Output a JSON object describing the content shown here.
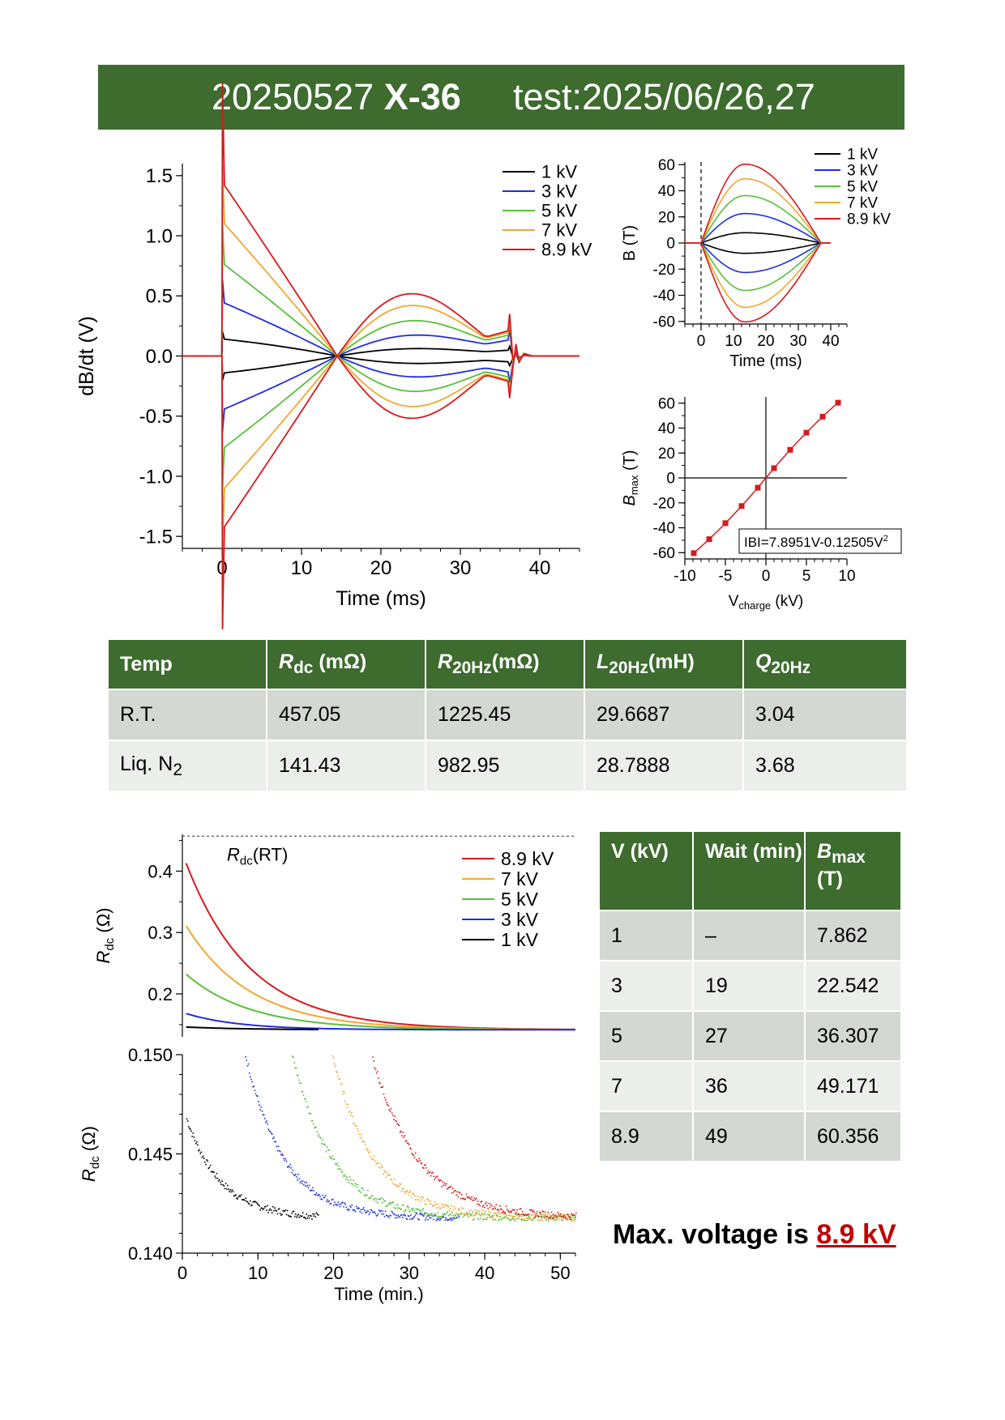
{
  "title": {
    "date": "20250527",
    "coil": "X-36",
    "test": "test:2025/06/26,27"
  },
  "colors": {
    "banner": "#3e6b2e",
    "kv1": "#000000",
    "kv3": "#1f2ee0",
    "kv5": "#58c03a",
    "kv7": "#f0a830",
    "kv89": "#d8191c"
  },
  "chart_data": [
    {
      "type": "line",
      "ylabel": "dB/dt (V)",
      "xlabel": "Time (ms)",
      "xlim": [
        -5,
        45
      ],
      "ylim": [
        -1.6,
        1.6
      ],
      "xticks": [
        "0",
        "10",
        "20",
        "30",
        "40"
      ],
      "yticks": [
        "1.5",
        "1.0",
        "0.5",
        "0.0",
        "-0.5",
        "-1.0",
        "-1.5"
      ],
      "legend": [
        "1 kV",
        "3 kV",
        "5 kV",
        "7 kV",
        "8.9 kV"
      ],
      "legend_position": "top-right",
      "series": [
        {
          "name": "1 kV",
          "peak": 0.14,
          "mid": -0.06,
          "end": -0.08
        },
        {
          "name": "3 kV",
          "peak": 0.44,
          "mid": -0.17,
          "end": -0.22
        },
        {
          "name": "5 kV",
          "peak": 0.76,
          "mid": -0.3,
          "end": -0.29
        },
        {
          "name": "7 kV",
          "peak": 1.1,
          "mid": -0.44,
          "end": -0.33
        },
        {
          "name": "8.9 kV",
          "peak": 1.42,
          "mid": -0.55,
          "end": -0.35
        }
      ]
    },
    {
      "type": "line",
      "ylabel": "B (T)",
      "xlabel": "Time (ms)",
      "xlim": [
        -5,
        45
      ],
      "ylim": [
        -60,
        60
      ],
      "xticks": [
        "0",
        "10",
        "20",
        "30",
        "40"
      ],
      "yticks": [
        "60",
        "40",
        "20",
        "0",
        "-20",
        "-40",
        "-60"
      ],
      "legend": [
        "1 kV",
        "3 kV",
        "5 kV",
        "7 kV",
        "8.9 kV"
      ],
      "legend_position": "top-right",
      "series": [
        {
          "name": "1 kV",
          "bmax": 7.862
        },
        {
          "name": "3 kV",
          "bmax": 22.542
        },
        {
          "name": "5 kV",
          "bmax": 36.307
        },
        {
          "name": "7 kV",
          "bmax": 49.171
        },
        {
          "name": "8.9 kV",
          "bmax": 60.356
        }
      ]
    },
    {
      "type": "scatter",
      "ylabel": "B max (T)",
      "xlabel": "V charge (kV)",
      "xlim": [
        -10,
        10
      ],
      "ylim": [
        -65,
        65
      ],
      "xticks": [
        "-10",
        "-5",
        "0",
        "5",
        "10"
      ],
      "yticks": [
        "60",
        "40",
        "20",
        "0",
        "-20",
        "-40",
        "-60"
      ],
      "fit_label": "IBI=7.8951V-0.12505V",
      "fit_sup": "2",
      "fit": {
        "a": 7.8951,
        "b": -0.12505
      },
      "points_x": [
        -8.9,
        -7,
        -5,
        -3,
        -1,
        1,
        3,
        5,
        7,
        8.9
      ],
      "points_y": [
        -60.356,
        -49.171,
        -36.307,
        -22.542,
        -7.862,
        7.862,
        22.542,
        36.307,
        49.171,
        60.356
      ]
    },
    {
      "type": "line",
      "ylabel": "Rdc (Ω)",
      "xlabel": "Time (min.)",
      "xlim": [
        0,
        52
      ],
      "ylim_top": [
        0.13,
        0.46
      ],
      "ylim_bottom": [
        0.14,
        0.15
      ],
      "yticks_top": [
        "0.4",
        "0.3",
        "0.2"
      ],
      "yticks_bottom": [
        "0.150",
        "0.145",
        "0.140"
      ],
      "xticks": [
        "0",
        "10",
        "20",
        "30",
        "40",
        "50"
      ],
      "reference_label": "Rdc(RT)",
      "reference_value": 0.457,
      "legend": [
        "8.9 kV",
        "7 kV",
        "5 kV",
        "3 kV",
        "1 kV"
      ],
      "legend_position": "top-right",
      "series": [
        {
          "name": "8.9 kV",
          "r0": 0.413,
          "wait": 49
        },
        {
          "name": "7 kV",
          "r0": 0.311,
          "wait": 36
        },
        {
          "name": "5 kV",
          "r0": 0.232,
          "wait": 27
        },
        {
          "name": "3 kV",
          "r0": 0.168,
          "wait": 19
        },
        {
          "name": "1 kV",
          "r0": 0.146,
          "wait": 18
        }
      ]
    }
  ],
  "table1": {
    "headers": [
      {
        "main": "Temp",
        "sub": "",
        "unit": ""
      },
      {
        "main": "R",
        "sub": "dc",
        "unit": " (mΩ)"
      },
      {
        "main": "R",
        "sub": "20Hz",
        "unit": "(mΩ)"
      },
      {
        "main": "L",
        "sub": "20Hz",
        "unit": "(mH)"
      },
      {
        "main": "Q",
        "sub": "20Hz",
        "unit": ""
      }
    ],
    "rows": [
      [
        "R.T.",
        "457.05",
        "1225.45",
        "29.6687",
        "3.04"
      ],
      [
        "Liq. N",
        "141.43",
        "982.95",
        "28.7888",
        "3.68"
      ]
    ],
    "row2_sub": "2"
  },
  "table2": {
    "headers": [
      "V (kV)",
      "Wait (min)",
      "B",
      "max",
      "(T)"
    ],
    "rows": [
      [
        "1",
        "–",
        "7.862"
      ],
      [
        "3",
        "19",
        "22.542"
      ],
      [
        "5",
        "27",
        "36.307"
      ],
      [
        "7",
        "36",
        "49.171"
      ],
      [
        "8.9",
        "49",
        "60.356"
      ]
    ]
  },
  "max_voltage": {
    "prefix": "Max. voltage is ",
    "value": "8.9 kV"
  }
}
